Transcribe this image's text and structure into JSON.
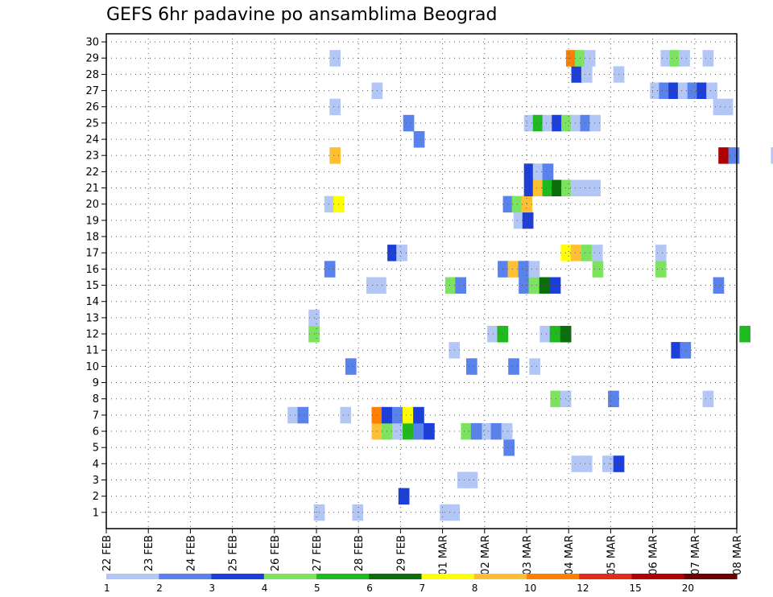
{
  "chart_data": {
    "type": "heatmap",
    "title": "GEFS 6hr padavine po ansamblima Beograd",
    "xlabel": "",
    "ylabel": "",
    "x_tick_labels": [
      "22 FEB",
      "23 FEB",
      "24 FEB",
      "25 FEB",
      "26 FEB",
      "27 FEB",
      "28 FEB",
      "29 FEB",
      "01 MAR",
      "02 MAR",
      "03 MAR",
      "04 MAR",
      "05 MAR",
      "06 MAR",
      "07 MAR",
      "08 MAR"
    ],
    "y_tick_labels": [
      "1",
      "2",
      "3",
      "4",
      "5",
      "6",
      "7",
      "8",
      "9",
      "10",
      "11",
      "12",
      "13",
      "14",
      "15",
      "16",
      "17",
      "18",
      "19",
      "20",
      "21",
      "22",
      "23",
      "24",
      "25",
      "26",
      "27",
      "28",
      "29",
      "30"
    ],
    "grid": true,
    "legend": {
      "position": "bottom",
      "labels": [
        "1",
        "2",
        "3",
        "4",
        "5",
        "6",
        "7",
        "8",
        "10",
        "12",
        "15",
        "20"
      ],
      "colors": [
        "#b3c7f7",
        "#5a82ec",
        "#1c3fdb",
        "#7ce35f",
        "#1fba1f",
        "#0a6e0a",
        "#ffff00",
        "#ffbf33",
        "#ff7f00",
        "#e62817",
        "#b00000",
        "#6b0000"
      ]
    },
    "scale_bounds": [
      1,
      2,
      3,
      4,
      5,
      6,
      7,
      8,
      10,
      12,
      15,
      20
    ],
    "x_unit": "6-hour step from 22 FEB 00z",
    "cells": [
      [
        19.75,
        1,
        1.5
      ],
      [
        31.75,
        1,
        1.5
      ],
      [
        23.4,
        1,
        1.5
      ],
      [
        32.6,
        1,
        1.2
      ],
      [
        27.8,
        2,
        3.5
      ],
      [
        33.4,
        3,
        1.5
      ],
      [
        34.3,
        3,
        1.5
      ],
      [
        44.25,
        4,
        1.5
      ],
      [
        45.2,
        4,
        1.5
      ],
      [
        47.2,
        4,
        1.5
      ],
      [
        48.25,
        4,
        3.5
      ],
      [
        37.8,
        5,
        2.5
      ],
      [
        25.25,
        6,
        8.5
      ],
      [
        26.2,
        6,
        4.5
      ],
      [
        27.2,
        6,
        1.5
      ],
      [
        28.2,
        6,
        5.5
      ],
      [
        29.2,
        6,
        2.5
      ],
      [
        30.2,
        6,
        3.5
      ],
      [
        33.75,
        6,
        4.5
      ],
      [
        34.7,
        6,
        2.5
      ],
      [
        35.75,
        6,
        1.5
      ],
      [
        36.6,
        6,
        2.5
      ],
      [
        37.6,
        6,
        1.5
      ],
      [
        17.25,
        7,
        1.5
      ],
      [
        18.2,
        7,
        2.5
      ],
      [
        22.25,
        7,
        1.5
      ],
      [
        25.25,
        7,
        10.5
      ],
      [
        26.2,
        7,
        3.5
      ],
      [
        27.2,
        7,
        2.5
      ],
      [
        28.2,
        7,
        7.5
      ],
      [
        29.2,
        7,
        3.5
      ],
      [
        42.25,
        8,
        4.5
      ],
      [
        43.2,
        8,
        1.5
      ],
      [
        47.75,
        8,
        2.5
      ],
      [
        56.75,
        8,
        1.5
      ],
      [
        22.75,
        10,
        2.5
      ],
      [
        34.25,
        10,
        2.5
      ],
      [
        38.25,
        10,
        2.5
      ],
      [
        40.25,
        10,
        1.5
      ],
      [
        53.75,
        11,
        3.5
      ],
      [
        54.6,
        11,
        2.5
      ],
      [
        32.6,
        11,
        1.5
      ],
      [
        19.25,
        12,
        4.5
      ],
      [
        36.25,
        12,
        1.5
      ],
      [
        37.2,
        12,
        5.5
      ],
      [
        41.25,
        12,
        1.5
      ],
      [
        42.2,
        12,
        5.5
      ],
      [
        43.2,
        12,
        6.5
      ],
      [
        60.25,
        12,
        5.5
      ],
      [
        19.25,
        13,
        1.5
      ],
      [
        24.75,
        15,
        1.5
      ],
      [
        25.6,
        15,
        1.5
      ],
      [
        32.25,
        15,
        4.5
      ],
      [
        33.2,
        15,
        2.5
      ],
      [
        39.25,
        15,
        2.5
      ],
      [
        40.2,
        15,
        4.5
      ],
      [
        41.2,
        15,
        6.5
      ],
      [
        42.2,
        15,
        3.5
      ],
      [
        57.75,
        15,
        2.5
      ],
      [
        20.75,
        16,
        2.5
      ],
      [
        37.25,
        16,
        2.5
      ],
      [
        38.2,
        16,
        8.5
      ],
      [
        39.2,
        16,
        2.5
      ],
      [
        40.2,
        16,
        1.5
      ],
      [
        46.25,
        16,
        4.5
      ],
      [
        52.25,
        16,
        4.5
      ],
      [
        26.75,
        17,
        3.5
      ],
      [
        27.6,
        17,
        1.5
      ],
      [
        43.25,
        17,
        7.5
      ],
      [
        44.2,
        17,
        8.5
      ],
      [
        45.2,
        17,
        4.5
      ],
      [
        46.2,
        17,
        1.5
      ],
      [
        52.25,
        17,
        1.5
      ],
      [
        63.75,
        17,
        2.5
      ],
      [
        64.6,
        17,
        3.5
      ],
      [
        38.75,
        19,
        1.5
      ],
      [
        39.6,
        19,
        3.5
      ],
      [
        20.75,
        20,
        1.5
      ],
      [
        21.6,
        20,
        7.5
      ],
      [
        37.75,
        20,
        2.5
      ],
      [
        38.6,
        20,
        4.5
      ],
      [
        39.5,
        20,
        8.5
      ],
      [
        39.75,
        21,
        3.5
      ],
      [
        40.6,
        21,
        8.5
      ],
      [
        41.5,
        21,
        5.5
      ],
      [
        42.4,
        21,
        6.5
      ],
      [
        43.3,
        21,
        4.5
      ],
      [
        44.2,
        21,
        1.5
      ],
      [
        45.1,
        21,
        1.5
      ],
      [
        46,
        21,
        1.5
      ],
      [
        39.75,
        22,
        3.5
      ],
      [
        40.6,
        22,
        1.5
      ],
      [
        41.5,
        22,
        2.5
      ],
      [
        21.25,
        23,
        8.5
      ],
      [
        58.25,
        23,
        15.5
      ],
      [
        59.2,
        23,
        2.5
      ],
      [
        63.25,
        23,
        1.5
      ],
      [
        29.25,
        24,
        2.5
      ],
      [
        28.25,
        25,
        2.5
      ],
      [
        39.75,
        25,
        1.5
      ],
      [
        40.6,
        25,
        5.5
      ],
      [
        41.5,
        25,
        1.5
      ],
      [
        42.4,
        25,
        3.5
      ],
      [
        43.3,
        25,
        4.5
      ],
      [
        44.2,
        25,
        1.5
      ],
      [
        45.1,
        25,
        2.5
      ],
      [
        46,
        25,
        1.5
      ],
      [
        21.25,
        26,
        1.5
      ],
      [
        57.75,
        26,
        1.5
      ],
      [
        58.6,
        26,
        1.5
      ],
      [
        25.25,
        27,
        1.5
      ],
      [
        51.75,
        27,
        1.5
      ],
      [
        52.6,
        27,
        2.5
      ],
      [
        53.5,
        27,
        3.5
      ],
      [
        54.4,
        27,
        1.5
      ],
      [
        55.3,
        27,
        2.5
      ],
      [
        56.2,
        27,
        3.5
      ],
      [
        57.1,
        27,
        1.5
      ],
      [
        44.25,
        28,
        3.5
      ],
      [
        45.2,
        28,
        1.5
      ],
      [
        48.25,
        28,
        1.5
      ],
      [
        21.25,
        29,
        1.5
      ],
      [
        43.75,
        29,
        10.5
      ],
      [
        44.6,
        29,
        4.5
      ],
      [
        45.5,
        29,
        1.5
      ],
      [
        52.75,
        29,
        1.5
      ],
      [
        53.6,
        29,
        4.5
      ],
      [
        54.5,
        29,
        1.5
      ],
      [
        56.75,
        29,
        1.5
      ]
    ]
  }
}
